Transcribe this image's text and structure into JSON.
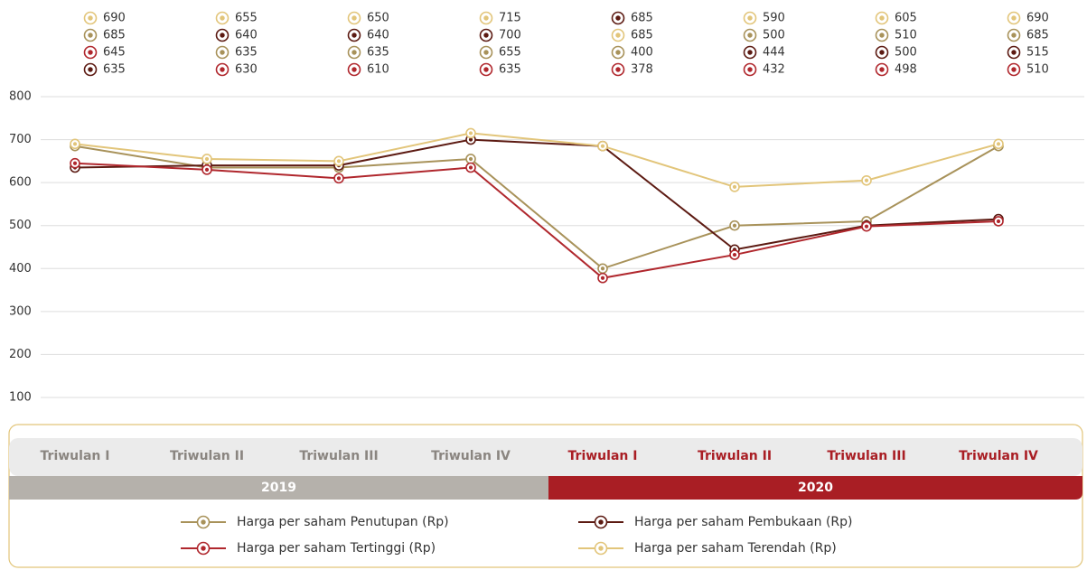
{
  "chart_data": {
    "type": "line",
    "categories": [
      "Triwulan I",
      "Triwulan II",
      "Triwulan III",
      "Triwulan IV",
      "Triwulan I",
      "Triwulan II",
      "Triwulan III",
      "Triwulan IV"
    ],
    "groups": [
      {
        "label": "2019",
        "color": "#b5b1ab",
        "text_color": "#8a8580"
      },
      {
        "label": "2020",
        "color": "#a91e24",
        "text_color": "#a91e24"
      }
    ],
    "series": [
      {
        "name": "Harga per saham Penutupan (Rp)",
        "color": "#a8925a",
        "values": [
          685,
          635,
          635,
          655,
          400,
          500,
          510,
          685
        ]
      },
      {
        "name": "Harga per saham Pembukaan (Rp)",
        "color": "#5c1a12",
        "values": [
          635,
          640,
          640,
          700,
          685,
          444,
          500,
          515
        ]
      },
      {
        "name": "Harga per saham Tertinggi (Rp)",
        "color": "#b0272d",
        "values": [
          645,
          630,
          610,
          635,
          378,
          432,
          498,
          510
        ]
      },
      {
        "name": "Harga per saham Terendah (Rp)",
        "color": "#e2c57a",
        "values": [
          690,
          655,
          650,
          715,
          685,
          590,
          605,
          690
        ]
      }
    ],
    "ylim": [
      100,
      800
    ],
    "yticks": [
      100,
      200,
      300,
      400,
      500,
      600,
      700,
      800
    ],
    "grid": true
  }
}
